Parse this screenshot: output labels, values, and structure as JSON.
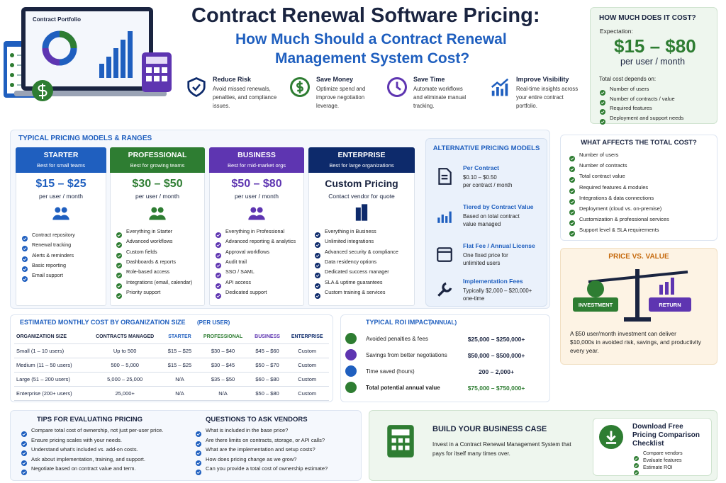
{
  "header": {
    "title": "Contract Renewal Software Pricing:",
    "subtitle_line1": "How Much Should a Contract Renewal",
    "subtitle_line2": "Management System Cost?",
    "laptop_label": "Contract Portfolio"
  },
  "benefits": [
    {
      "title": "Reduce Risk",
      "text": [
        "Avoid missed renewals,",
        "penalties, and compliance",
        "issues."
      ]
    },
    {
      "title": "Save Money",
      "text": [
        "Optimize spend and",
        "improve negotiation",
        "leverage."
      ]
    },
    {
      "title": "Save Time",
      "text": [
        "Automate workflows",
        "and eliminate manual",
        "tracking."
      ]
    },
    {
      "title": "Improve Visibility",
      "text": [
        "Real-time insights across",
        "your entire contract",
        "portfolio."
      ]
    }
  ],
  "cost_box": {
    "title": "HOW MUCH DOES IT COST?",
    "expectation": "Expectation:",
    "price": "$15 – $80",
    "unit": "per user / month",
    "depends": "Total cost depends on:",
    "items": [
      "Number of users",
      "Number of contracts / value",
      "Required features",
      "Deployment and support needs"
    ]
  },
  "pricing_models": {
    "title": "TYPICAL PRICING MODELS & RANGES",
    "tiers": [
      {
        "name": "STARTER",
        "sub": "Best for small teams",
        "price": "$15 – $25",
        "unit": "per user / month",
        "features": [
          "Contract repository",
          "Renewal tracking",
          "Alerts & reminders",
          "Basic reporting",
          "Email support"
        ]
      },
      {
        "name": "PROFESSIONAL",
        "sub": "Best for growing teams",
        "price": "$30 – $50",
        "unit": "per user / month",
        "features": [
          "Everything in Starter",
          "Advanced workflows",
          "Custom fields",
          "Dashboards & reports",
          "Role-based access",
          "Integrations (email, calendar)",
          "Priority support"
        ]
      },
      {
        "name": "BUSINESS",
        "sub": "Best for mid-market orgs",
        "price": "$50 – $80",
        "unit": "per user / month",
        "features": [
          "Everything in Professional",
          "Advanced reporting & analytics",
          "Approval workflows",
          "Audit trail",
          "SSO / SAML",
          "API access",
          "Dedicated support"
        ]
      },
      {
        "name": "ENTERPRISE",
        "sub": "Best for large organizations",
        "price": "Custom Pricing",
        "unit": "Contact vendor for quote",
        "features": [
          "Everything in Business",
          "Unlimited integrations",
          "Advanced security & compliance",
          "Data residency options",
          "Dedicated success manager",
          "SLA & uptime guarantees",
          "Custom training & services"
        ]
      }
    ]
  },
  "alternative": {
    "title": "ALTERNATIVE PRICING MODELS",
    "items": [
      {
        "name": "Per Contract",
        "text": [
          "$0.10 – $0.50",
          "per contract / month"
        ]
      },
      {
        "name": "Tiered by Contract Value",
        "text": [
          "Based on total contract",
          "value managed"
        ]
      },
      {
        "name": "Flat Fee / Annual License",
        "text": [
          "One fixed price for",
          "unlimited users"
        ]
      },
      {
        "name": "Implementation Fees",
        "text": [
          "Typically $2,000 – $20,000+",
          "one-time"
        ]
      }
    ]
  },
  "affects": {
    "title": "WHAT AFFECTS THE TOTAL COST?",
    "items": [
      "Number of users",
      "Number of contracts",
      "Total contract value",
      "Required features & modules",
      "Integrations & data connections",
      "Deployment (cloud vs. on-premise)",
      "Customization & professional services",
      "Support level & SLA requirements"
    ]
  },
  "price_value": {
    "title": "PRICE VS. VALUE",
    "investment": "INVESTMENT",
    "return": "RETURN",
    "text": [
      "A $50 user/month investment can deliver",
      "$10,000s in avoided risk, savings, and productivity",
      "every year."
    ]
  },
  "cost_table": {
    "title": "ESTIMATED MONTHLY COST BY ORGANIZATION SIZE",
    "title_note": "(PER USER)",
    "columns": [
      "ORGANIZATION SIZE",
      "CONTRACTS MANAGED",
      "STARTER",
      "PROFESSIONAL",
      "BUSINESS",
      "ENTERPRISE"
    ],
    "rows": [
      [
        "Small (1 – 10 users)",
        "Up to 500",
        "$15 – $25",
        "$30 – $40",
        "$45 – $60",
        "Custom"
      ],
      [
        "Medium (11 – 50 users)",
        "500 – 5,000",
        "$15 – $25",
        "$30 – $45",
        "$50 – $70",
        "Custom"
      ],
      [
        "Large (51 – 200 users)",
        "5,000 – 25,000",
        "N/A",
        "$35 – $50",
        "$60 – $80",
        "Custom"
      ],
      [
        "Enterprise (200+ users)",
        "25,000+",
        "N/A",
        "N/A",
        "$50 – $80",
        "Custom"
      ]
    ]
  },
  "roi": {
    "title": "TYPICAL ROI IMPACT",
    "title_note": "(ANNUAL)",
    "rows": [
      {
        "label": "Avoided penalties & fees",
        "value": "$25,000 – $250,000+"
      },
      {
        "label": "Savings from better negotiations",
        "value": "$50,000 – $500,000+"
      },
      {
        "label": "Time saved (hours)",
        "value": "200 – 2,000+"
      },
      {
        "label": "Total potential annual value",
        "value": "$75,000 – $750,000+"
      }
    ]
  },
  "tips": {
    "title": "TIPS FOR EVALUATING PRICING",
    "items": [
      "Compare total cost of ownership, not just per-user price.",
      "Ensure pricing scales with your needs.",
      "Understand what's included vs. add-on costs.",
      "Ask about implementation, training, and support.",
      "Negotiate based on contract value and term."
    ]
  },
  "questions": {
    "title": "QUESTIONS TO ASK VENDORS",
    "items": [
      "What is included in the base price?",
      "Are there limits on contracts, storage, or API calls?",
      "What are the implementation and setup costs?",
      "How does pricing change as we grow?",
      "Can you provide a total cost of ownership estimate?"
    ]
  },
  "business_case": {
    "title": "BUILD YOUR BUSINESS CASE",
    "text": [
      "Invest in a Contract Renewal Management System that",
      "pays for itself many times over."
    ]
  },
  "download": {
    "title": [
      "Download Free",
      "Pricing Comparison",
      "Checklist"
    ],
    "items": [
      "Compare vendors",
      "Evaluate features",
      "Estimate ROI"
    ]
  }
}
